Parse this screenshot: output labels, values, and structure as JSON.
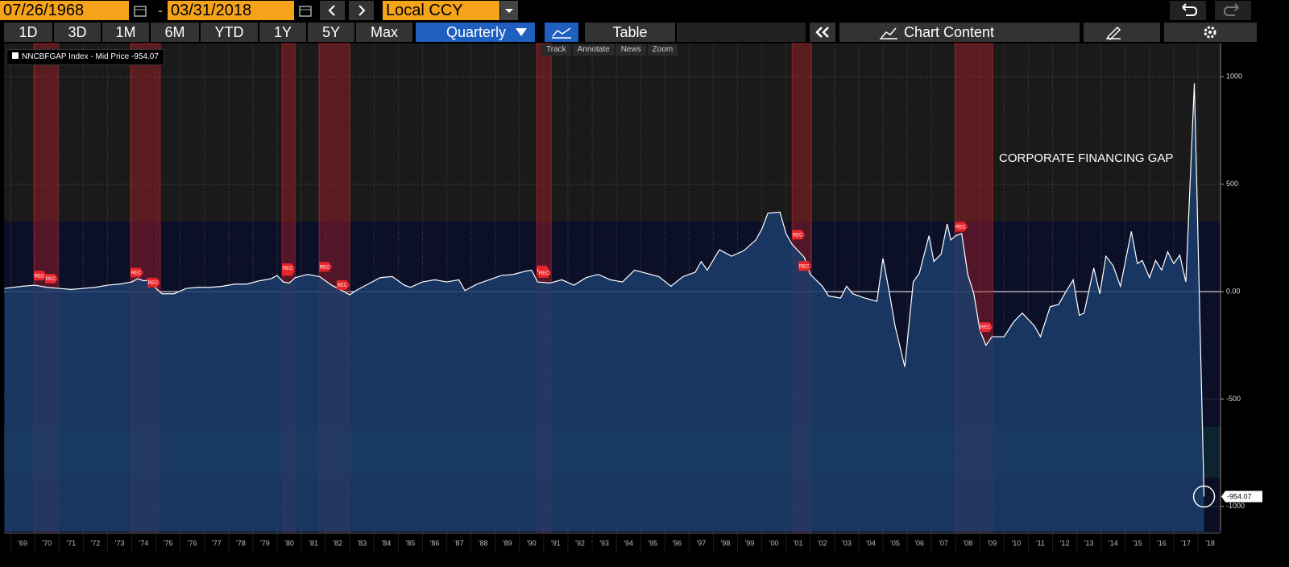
{
  "toolbar": {
    "start_date": "07/26/1968",
    "separator": "-",
    "end_date": "03/31/2018",
    "currency": "Local CCY",
    "periods": [
      "1D",
      "3D",
      "1M",
      "6M",
      "YTD",
      "1Y",
      "5Y",
      "Max"
    ],
    "frequency": "Quarterly",
    "table": "Table",
    "chart_content": "Chart Content",
    "tools": [
      "Track",
      "Annotate",
      "News",
      "Zoom"
    ]
  },
  "chart_data": {
    "type": "line",
    "annotation": "CORPORATE FINANCING GAP",
    "x": [
      1968.75,
      1969.5,
      1970,
      1970.5,
      1971,
      1971.5,
      1972,
      1972.5,
      1973,
      1973.5,
      1974,
      1974.25,
      1974.5,
      1974.75,
      1975,
      1975.25,
      1975.75,
      1976.25,
      1976.75,
      1977.25,
      1977.75,
      1978.25,
      1978.75,
      1979.25,
      1979.75,
      1980,
      1980.25,
      1980.5,
      1980.75,
      1981.25,
      1981.75,
      1982.25,
      1982.75,
      1983,
      1983.25,
      1983.75,
      1984.25,
      1984.75,
      1985.25,
      1985.5,
      1986,
      1986.5,
      1987,
      1987.5,
      1987.75,
      1988.25,
      1988.75,
      1989.25,
      1989.75,
      1990.25,
      1990.5,
      1990.75,
      1991.25,
      1991.75,
      1992.25,
      1992.75,
      1993.25,
      1993.75,
      1994.25,
      1994.75,
      1995.25,
      1995.75,
      1996.25,
      1996.75,
      1997.25,
      1997.5,
      1997.75,
      1998.25,
      1998.75,
      1999.25,
      1999.75,
      2000,
      2000.25,
      2000.75,
      2001,
      2001.25,
      2001.75,
      2002,
      2002.5,
      2002.75,
      2003.25,
      2003.5,
      2003.75,
      2004.25,
      2004.75,
      2005,
      2005.25,
      2005.5,
      2005.9,
      2006.25,
      2006.5,
      2006.9,
      2007.1,
      2007.4,
      2007.65,
      2007.8,
      2008,
      2008.25,
      2008.5,
      2008.75,
      2009,
      2009.25,
      2009.5,
      2010,
      2010.4,
      2010.75,
      2011.25,
      2011.5,
      2011.9,
      2012.25,
      2012.5,
      2012.85,
      2013.1,
      2013.3,
      2013.7,
      2013.95,
      2014.2,
      2014.5,
      2014.8,
      2015.25,
      2015.5,
      2015.7,
      2016,
      2016.25,
      2016.5,
      2016.75,
      2017,
      2017.25,
      2017.5,
      2017.85,
      2018.25
    ],
    "series": [
      {
        "name": "NNCBFGAP Index - Mid Price",
        "color": "#ffffff",
        "values": [
          15,
          25,
          30,
          20,
          15,
          10,
          15,
          20,
          30,
          35,
          45,
          60,
          50,
          55,
          15,
          -10,
          -10,
          15,
          20,
          20,
          25,
          35,
          35,
          50,
          60,
          75,
          45,
          40,
          65,
          80,
          70,
          30,
          0,
          -15,
          5,
          35,
          65,
          70,
          30,
          20,
          45,
          55,
          45,
          55,
          5,
          35,
          55,
          75,
          80,
          95,
          100,
          45,
          40,
          55,
          30,
          65,
          80,
          55,
          45,
          100,
          85,
          70,
          25,
          70,
          90,
          140,
          100,
          195,
          165,
          190,
          240,
          290,
          365,
          370,
          270,
          220,
          160,
          80,
          25,
          -20,
          -30,
          25,
          -10,
          -30,
          -45,
          155,
          5,
          -160,
          -350,
          45,
          85,
          260,
          140,
          175,
          315,
          240,
          260,
          270,
          80,
          -10,
          -180,
          -250,
          -210,
          -210,
          -140,
          -100,
          -160,
          -210,
          -70,
          -60,
          -10,
          55,
          -110,
          -100,
          110,
          -10,
          165,
          120,
          25,
          280,
          130,
          145,
          65,
          145,
          100,
          185,
          130,
          170,
          45,
          970,
          -954.07
        ]
      }
    ],
    "recessions": [
      {
        "start": 1969.96,
        "end": 1970.96,
        "label": "REC"
      },
      {
        "start": 1973.95,
        "end": 1975.18,
        "label": "REC"
      },
      {
        "start": 1980.2,
        "end": 1980.74,
        "label": "REC"
      },
      {
        "start": 1981.73,
        "end": 1982.99,
        "label": "REC"
      },
      {
        "start": 1990.71,
        "end": 1991.31,
        "label": "REC"
      },
      {
        "start": 2001.25,
        "end": 2002.05,
        "label": "REC"
      },
      {
        "start": 2007.97,
        "end": 2009.53,
        "label": "REC"
      }
    ],
    "xlim": [
      1968.73,
      2018.93
    ],
    "ylim": [
      -1117,
      1155
    ],
    "yticks": [
      -1000,
      -500,
      {
        "value": 0,
        "label": "0.00"
      },
      500,
      1000
    ],
    "xticks": [
      {
        "value": 1969,
        "label": "'69"
      },
      {
        "value": 1970,
        "label": "'70"
      },
      {
        "value": 1971,
        "label": "'71"
      },
      {
        "value": 1972,
        "label": "'72"
      },
      {
        "value": 1973,
        "label": "'73"
      },
      {
        "value": 1974,
        "label": "'74"
      },
      {
        "value": 1975,
        "label": "'75"
      },
      {
        "value": 1976,
        "label": "'76"
      },
      {
        "value": 1977,
        "label": "'77"
      },
      {
        "value": 1978,
        "label": "'78"
      },
      {
        "value": 1979,
        "label": "'79"
      },
      {
        "value": 1980,
        "label": "'80"
      },
      {
        "value": 1981,
        "label": "'81"
      },
      {
        "value": 1982,
        "label": "'82"
      },
      {
        "value": 1983,
        "label": "'83"
      },
      {
        "value": 1984,
        "label": "'84"
      },
      {
        "value": 1985,
        "label": "'85"
      },
      {
        "value": 1986,
        "label": "'86"
      },
      {
        "value": 1987,
        "label": "'87"
      },
      {
        "value": 1988,
        "label": "'88"
      },
      {
        "value": 1989,
        "label": "'89"
      },
      {
        "value": 1990,
        "label": "'90"
      },
      {
        "value": 1991,
        "label": "'91"
      },
      {
        "value": 1992,
        "label": "'92"
      },
      {
        "value": 1993,
        "label": "'93"
      },
      {
        "value": 1994,
        "label": "'94"
      },
      {
        "value": 1995,
        "label": "'95"
      },
      {
        "value": 1996,
        "label": "'96"
      },
      {
        "value": 1997,
        "label": "'97"
      },
      {
        "value": 1998,
        "label": "'98"
      },
      {
        "value": 1999,
        "label": "'99"
      },
      {
        "value": 2000,
        "label": "'00"
      },
      {
        "value": 2001,
        "label": "'01"
      },
      {
        "value": 2002,
        "label": "'02"
      },
      {
        "value": 2003,
        "label": "'03"
      },
      {
        "value": 2004,
        "label": "'04"
      },
      {
        "value": 2005,
        "label": "'05"
      },
      {
        "value": 2006,
        "label": "'06"
      },
      {
        "value": 2007,
        "label": "'07"
      },
      {
        "value": 2008,
        "label": "'08"
      },
      {
        "value": 2009,
        "label": "'09"
      },
      {
        "value": 2010,
        "label": "'10"
      },
      {
        "value": 2011,
        "label": "'11"
      },
      {
        "value": 2012,
        "label": "'12"
      },
      {
        "value": 2013,
        "label": "'13"
      },
      {
        "value": 2014,
        "label": "'14"
      },
      {
        "value": 2015,
        "label": "'15"
      },
      {
        "value": 2016,
        "label": "'16"
      },
      {
        "value": 2017,
        "label": "'17"
      },
      {
        "value": 2018,
        "label": "'18"
      }
    ],
    "grid": true
  }
}
